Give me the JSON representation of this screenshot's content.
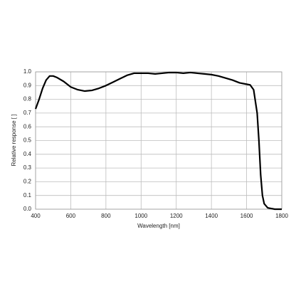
{
  "chart_data": {
    "type": "line",
    "x_label": "Wavelength [nm]",
    "y_label": "Relative response [ ]",
    "x": [
      400,
      420,
      440,
      460,
      480,
      500,
      520,
      560,
      600,
      640,
      680,
      720,
      760,
      800,
      840,
      880,
      920,
      960,
      1000,
      1040,
      1080,
      1120,
      1160,
      1200,
      1240,
      1280,
      1320,
      1360,
      1400,
      1440,
      1480,
      1520,
      1560,
      1600,
      1620,
      1640,
      1660,
      1670,
      1680,
      1690,
      1700,
      1720,
      1760,
      1800
    ],
    "series": [
      {
        "color": "#000000",
        "values": [
          0.73,
          0.8,
          0.88,
          0.94,
          0.97,
          0.97,
          0.96,
          0.93,
          0.89,
          0.87,
          0.86,
          0.865,
          0.88,
          0.9,
          0.925,
          0.95,
          0.975,
          0.99,
          0.99,
          0.99,
          0.985,
          0.99,
          0.995,
          0.995,
          0.99,
          0.995,
          0.99,
          0.985,
          0.98,
          0.97,
          0.955,
          0.94,
          0.92,
          0.91,
          0.905,
          0.87,
          0.7,
          0.5,
          0.25,
          0.1,
          0.04,
          0.01,
          0.0,
          0.0
        ]
      }
    ],
    "xlim": [
      400,
      1800
    ],
    "ylim": [
      0,
      1
    ],
    "xticks": [
      400,
      600,
      800,
      1000,
      1200,
      1400,
      1600,
      1800
    ],
    "yticks": [
      {
        "value": 0,
        "label": "0.0"
      },
      0.1,
      0.2,
      0.3,
      0.4,
      0.5,
      0.6,
      0.7,
      0.8,
      0.9,
      {
        "value": 1,
        "label": "1.0"
      }
    ],
    "grid": true
  }
}
